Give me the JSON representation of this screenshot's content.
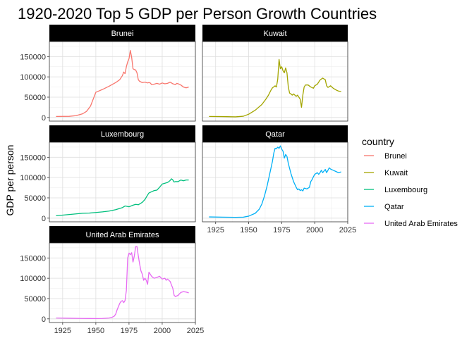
{
  "chart_data": {
    "type": "line",
    "title": "1920-2020 Top 5 GDP per Person Growth Countries",
    "xlabel": "",
    "ylabel": "GDP per person",
    "xlim": [
      1915,
      2025
    ],
    "ylim": [
      -9000,
      187000
    ],
    "x_ticks": [
      1925,
      1950,
      1975,
      2000,
      2025
    ],
    "y_ticks": [
      0,
      50000,
      100000,
      150000
    ],
    "y_tick_labels": [
      "0",
      "50000",
      "100000",
      "150000"
    ],
    "grid": true,
    "legend_position": "right",
    "legend_title": "country",
    "series": [
      {
        "name": "Brunei",
        "color": "#F8766D",
        "points": [
          [
            1920,
            2500
          ],
          [
            1930,
            2800
          ],
          [
            1935,
            4500
          ],
          [
            1940,
            9000
          ],
          [
            1943,
            15000
          ],
          [
            1946,
            28000
          ],
          [
            1948,
            45000
          ],
          [
            1950,
            62000
          ],
          [
            1955,
            69000
          ],
          [
            1960,
            77000
          ],
          [
            1965,
            86000
          ],
          [
            1968,
            93000
          ],
          [
            1970,
            103000
          ],
          [
            1971,
            112000
          ],
          [
            1972,
            108000
          ],
          [
            1973,
            125000
          ],
          [
            1974,
            137000
          ],
          [
            1975,
            145000
          ],
          [
            1976,
            165000
          ],
          [
            1977,
            148000
          ],
          [
            1978,
            120000
          ],
          [
            1979,
            118000
          ],
          [
            1980,
            117000
          ],
          [
            1981,
            110000
          ],
          [
            1982,
            93000
          ],
          [
            1983,
            89000
          ],
          [
            1985,
            86000
          ],
          [
            1987,
            87000
          ],
          [
            1989,
            85000
          ],
          [
            1990,
            86000
          ],
          [
            1991,
            85000
          ],
          [
            1992,
            81000
          ],
          [
            1994,
            82000
          ],
          [
            1996,
            84000
          ],
          [
            1998,
            82000
          ],
          [
            2000,
            85000
          ],
          [
            2002,
            83000
          ],
          [
            2004,
            84000
          ],
          [
            2006,
            87000
          ],
          [
            2008,
            83000
          ],
          [
            2010,
            81000
          ],
          [
            2011,
            84000
          ],
          [
            2012,
            83000
          ],
          [
            2014,
            80000
          ],
          [
            2016,
            75000
          ],
          [
            2018,
            73000
          ],
          [
            2020,
            75000
          ]
        ]
      },
      {
        "name": "Kuwait",
        "color": "#A3A500",
        "points": [
          [
            1920,
            2500
          ],
          [
            1930,
            2200
          ],
          [
            1940,
            1500
          ],
          [
            1946,
            3000
          ],
          [
            1950,
            8000
          ],
          [
            1955,
            18000
          ],
          [
            1960,
            32000
          ],
          [
            1963,
            45000
          ],
          [
            1965,
            55000
          ],
          [
            1967,
            68000
          ],
          [
            1968,
            73000
          ],
          [
            1970,
            78000
          ],
          [
            1971,
            75000
          ],
          [
            1972,
            94000
          ],
          [
            1973,
            143000
          ],
          [
            1974,
            120000
          ],
          [
            1975,
            125000
          ],
          [
            1976,
            115000
          ],
          [
            1977,
            110000
          ],
          [
            1978,
            122000
          ],
          [
            1979,
            110000
          ],
          [
            1980,
            75000
          ],
          [
            1981,
            60000
          ],
          [
            1982,
            58000
          ],
          [
            1983,
            55000
          ],
          [
            1984,
            58000
          ],
          [
            1985,
            55000
          ],
          [
            1986,
            52000
          ],
          [
            1987,
            55000
          ],
          [
            1988,
            50000
          ],
          [
            1989,
            45000
          ],
          [
            1990,
            25000
          ],
          [
            1991,
            55000
          ],
          [
            1992,
            75000
          ],
          [
            1993,
            80000
          ],
          [
            1995,
            80000
          ],
          [
            1997,
            75000
          ],
          [
            1999,
            72000
          ],
          [
            2000,
            78000
          ],
          [
            2002,
            82000
          ],
          [
            2004,
            92000
          ],
          [
            2006,
            97000
          ],
          [
            2008,
            93000
          ],
          [
            2009,
            78000
          ],
          [
            2010,
            74000
          ],
          [
            2012,
            78000
          ],
          [
            2014,
            72000
          ],
          [
            2016,
            68000
          ],
          [
            2018,
            65000
          ],
          [
            2020,
            64000
          ]
        ]
      },
      {
        "name": "Luxembourg",
        "color": "#00BF7D",
        "points": [
          [
            1920,
            6000
          ],
          [
            1925,
            7500
          ],
          [
            1930,
            9000
          ],
          [
            1935,
            10500
          ],
          [
            1940,
            12000
          ],
          [
            1945,
            12500
          ],
          [
            1950,
            14000
          ],
          [
            1955,
            15500
          ],
          [
            1960,
            17500
          ],
          [
            1965,
            21000
          ],
          [
            1970,
            26000
          ],
          [
            1972,
            30000
          ],
          [
            1975,
            28000
          ],
          [
            1978,
            32000
          ],
          [
            1980,
            34000
          ],
          [
            1982,
            33000
          ],
          [
            1985,
            39000
          ],
          [
            1987,
            46000
          ],
          [
            1989,
            57000
          ],
          [
            1990,
            62000
          ],
          [
            1992,
            65000
          ],
          [
            1994,
            68000
          ],
          [
            1996,
            69000
          ],
          [
            1998,
            76000
          ],
          [
            2000,
            84000
          ],
          [
            2002,
            86000
          ],
          [
            2004,
            88000
          ],
          [
            2005,
            90000
          ],
          [
            2006,
            93000
          ],
          [
            2007,
            97000
          ],
          [
            2008,
            94000
          ],
          [
            2009,
            89000
          ],
          [
            2010,
            90000
          ],
          [
            2012,
            90000
          ],
          [
            2014,
            94000
          ],
          [
            2016,
            92000
          ],
          [
            2018,
            94000
          ],
          [
            2020,
            94000
          ]
        ]
      },
      {
        "name": "Qatar",
        "color": "#00B0F6",
        "points": [
          [
            1920,
            3000
          ],
          [
            1930,
            2500
          ],
          [
            1940,
            2000
          ],
          [
            1946,
            2500
          ],
          [
            1950,
            5000
          ],
          [
            1955,
            12000
          ],
          [
            1958,
            22000
          ],
          [
            1960,
            35000
          ],
          [
            1962,
            55000
          ],
          [
            1964,
            80000
          ],
          [
            1966,
            110000
          ],
          [
            1968,
            140000
          ],
          [
            1969,
            160000
          ],
          [
            1970,
            172000
          ],
          [
            1971,
            171000
          ],
          [
            1972,
            175000
          ],
          [
            1973,
            172000
          ],
          [
            1974,
            178000
          ],
          [
            1975,
            170000
          ],
          [
            1976,
            165000
          ],
          [
            1977,
            148000
          ],
          [
            1978,
            157000
          ],
          [
            1979,
            152000
          ],
          [
            1980,
            135000
          ],
          [
            1982,
            110000
          ],
          [
            1984,
            90000
          ],
          [
            1986,
            76000
          ],
          [
            1987,
            70000
          ],
          [
            1988,
            72000
          ],
          [
            1989,
            68000
          ],
          [
            1990,
            70000
          ],
          [
            1991,
            67000
          ],
          [
            1992,
            74000
          ],
          [
            1994,
            72000
          ],
          [
            1995,
            74000
          ],
          [
            1996,
            76000
          ],
          [
            1997,
            90000
          ],
          [
            1998,
            95000
          ],
          [
            1999,
            102000
          ],
          [
            2000,
            108000
          ],
          [
            2001,
            110000
          ],
          [
            2002,
            112000
          ],
          [
            2003,
            108000
          ],
          [
            2004,
            112000
          ],
          [
            2005,
            118000
          ],
          [
            2006,
            112000
          ],
          [
            2007,
            116000
          ],
          [
            2008,
            120000
          ],
          [
            2009,
            112000
          ],
          [
            2010,
            118000
          ],
          [
            2011,
            124000
          ],
          [
            2012,
            121000
          ],
          [
            2014,
            118000
          ],
          [
            2016,
            115000
          ],
          [
            2018,
            112000
          ],
          [
            2020,
            114000
          ]
        ]
      },
      {
        "name": "United Arab Emirates",
        "color": "#E76BF3",
        "points": [
          [
            1920,
            2000
          ],
          [
            1930,
            1500
          ],
          [
            1940,
            1000
          ],
          [
            1950,
            800
          ],
          [
            1955,
            1000
          ],
          [
            1960,
            2000
          ],
          [
            1962,
            3500
          ],
          [
            1964,
            7000
          ],
          [
            1965,
            12000
          ],
          [
            1966,
            22000
          ],
          [
            1967,
            30000
          ],
          [
            1968,
            38000
          ],
          [
            1969,
            43000
          ],
          [
            1970,
            45000
          ],
          [
            1971,
            40000
          ],
          [
            1972,
            45000
          ],
          [
            1973,
            70000
          ],
          [
            1974,
            150000
          ],
          [
            1975,
            162000
          ],
          [
            1976,
            158000
          ],
          [
            1977,
            163000
          ],
          [
            1978,
            140000
          ],
          [
            1979,
            155000
          ],
          [
            1980,
            178000
          ],
          [
            1981,
            178000
          ],
          [
            1982,
            155000
          ],
          [
            1983,
            135000
          ],
          [
            1984,
            118000
          ],
          [
            1985,
            110000
          ],
          [
            1986,
            95000
          ],
          [
            1987,
            100000
          ],
          [
            1988,
            95000
          ],
          [
            1989,
            85000
          ],
          [
            1990,
            115000
          ],
          [
            1991,
            110000
          ],
          [
            1992,
            105000
          ],
          [
            1993,
            102000
          ],
          [
            1994,
            100000
          ],
          [
            1996,
            102000
          ],
          [
            1998,
            105000
          ],
          [
            2000,
            98000
          ],
          [
            2002,
            100000
          ],
          [
            2003,
            95000
          ],
          [
            2004,
            98000
          ],
          [
            2006,
            92000
          ],
          [
            2008,
            75000
          ],
          [
            2009,
            58000
          ],
          [
            2010,
            55000
          ],
          [
            2012,
            58000
          ],
          [
            2014,
            65000
          ],
          [
            2016,
            67000
          ],
          [
            2018,
            66000
          ],
          [
            2020,
            64000
          ]
        ]
      }
    ]
  }
}
